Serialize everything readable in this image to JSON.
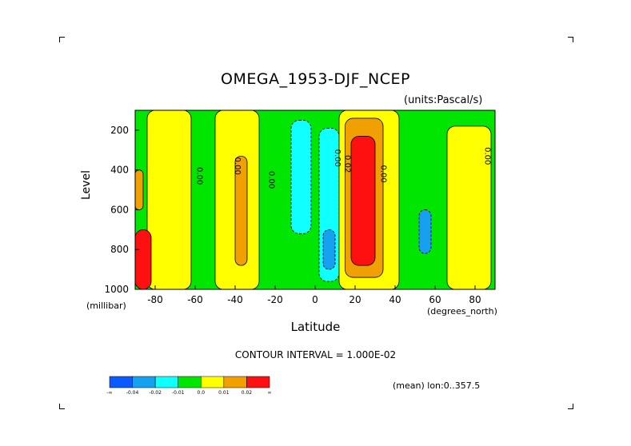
{
  "chart_data": {
    "type": "heatmap",
    "title": "OMEGA_1953-DJF_NCEP",
    "units_note": "(units:Pascal/s)",
    "xlabel": "Latitude",
    "xunit": "(degrees_north)",
    "ylabel": "Level",
    "yunit": "(millibar)",
    "xlim": [
      -90,
      90
    ],
    "ylim": [
      1000,
      100
    ],
    "x_ticks": [
      "-80",
      "-60",
      "-40",
      "-20",
      "0",
      "20",
      "40",
      "60",
      "80"
    ],
    "x_tick_values": [
      -80,
      -60,
      -40,
      -20,
      0,
      20,
      40,
      60,
      80
    ],
    "y_ticks": [
      "200",
      "400",
      "600",
      "800",
      "1000"
    ],
    "y_tick_values": [
      200,
      400,
      600,
      800,
      1000
    ],
    "contour_interval_text": "CONTOUR INTERVAL = 1.000E-02",
    "mean_text": "(mean) lon:0..357.5",
    "contour_labels": [
      "0.00",
      "0.00",
      "0.00",
      "0.00",
      "0.02",
      "0.00",
      "0.00"
    ],
    "colorbar": {
      "colors": [
        "#0a5aff",
        "#15a0f0",
        "#10ffff",
        "#00e600",
        "#ffff00",
        "#f0a000",
        "#ff1010"
      ],
      "labels": [
        "-∞",
        "-0.04",
        "-0.02",
        "-0.01",
        "0.0",
        "0.01",
        "0.02",
        "∞"
      ]
    },
    "regions": [
      {
        "level": "green",
        "x": [
          -90,
          90
        ],
        "y": [
          100,
          1000
        ]
      },
      {
        "level": "yellow",
        "x": [
          -84,
          -62
        ],
        "y": [
          100,
          1000
        ]
      },
      {
        "level": "yellow",
        "x": [
          -50,
          -28
        ],
        "y": [
          100,
          1000
        ]
      },
      {
        "level": "cyan",
        "x": [
          -12,
          -2
        ],
        "y": [
          150,
          720
        ]
      },
      {
        "level": "cyan",
        "x": [
          2,
          12
        ],
        "y": [
          190,
          960
        ]
      },
      {
        "level": "lightblue",
        "x": [
          4,
          10
        ],
        "y": [
          700,
          900
        ]
      },
      {
        "level": "yellow",
        "x": [
          12,
          42
        ],
        "y": [
          100,
          1000
        ]
      },
      {
        "level": "orange",
        "x": [
          15,
          34
        ],
        "y": [
          140,
          940
        ]
      },
      {
        "level": "red",
        "x": [
          18,
          30
        ],
        "y": [
          230,
          880
        ]
      },
      {
        "level": "yellow",
        "x": [
          66,
          88
        ],
        "y": [
          180,
          1000
        ]
      },
      {
        "level": "lightblue",
        "x": [
          52,
          58
        ],
        "y": [
          600,
          820
        ]
      },
      {
        "level": "orange",
        "x": [
          -40,
          -34
        ],
        "y": [
          330,
          880
        ]
      },
      {
        "level": "red",
        "x": [
          -90,
          -82
        ],
        "y": [
          700,
          1000
        ]
      },
      {
        "level": "orange",
        "x": [
          -90,
          -86
        ],
        "y": [
          400,
          600
        ]
      }
    ]
  }
}
